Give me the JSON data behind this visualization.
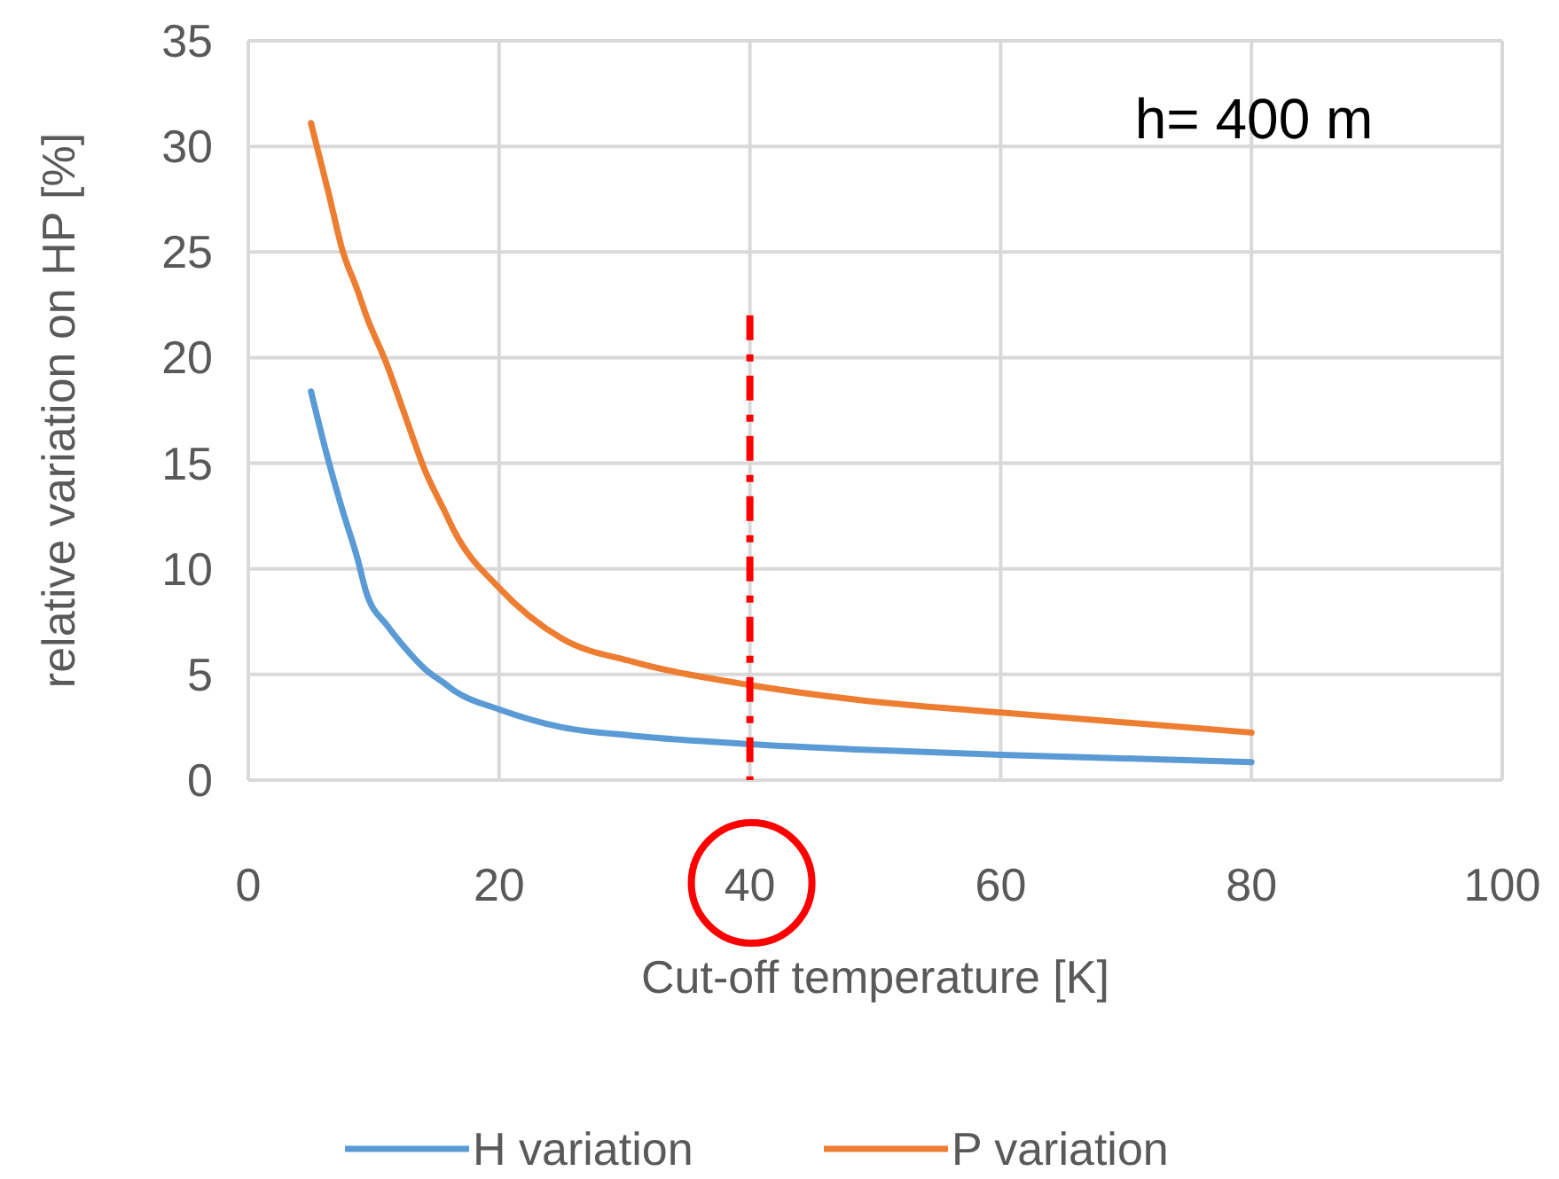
{
  "chart_data": {
    "type": "line",
    "x": [
      5,
      6.4,
      7.5,
      8.7,
      9.4,
      11.1,
      12.3,
      14.2,
      15.6,
      16.5,
      20,
      25,
      30.7,
      40,
      48.6,
      60,
      80
    ],
    "series": [
      {
        "name": "H variation",
        "color": "#5b9bd5",
        "values": [
          18.4,
          15.1,
          12.8,
          10.5,
          8.9,
          7.3,
          6.4,
          5.2,
          4.6,
          4.2,
          3.35,
          2.5,
          2.1,
          1.7,
          1.45,
          1.2,
          0.85
        ]
      },
      {
        "name": "P variation",
        "color": "#ed7d31",
        "values": [
          31.1,
          27.8,
          25.1,
          23.2,
          22.0,
          19.6,
          17.6,
          14.5,
          12.8,
          11.7,
          9.1,
          6.7,
          5.6,
          4.5,
          3.8,
          3.2,
          2.25
        ]
      }
    ],
    "xlabel": "Cut-off temperature [K]",
    "ylabel": "relative variation on HP  [%]",
    "xlim": [
      0,
      100
    ],
    "xticks": [
      0,
      20,
      40,
      60,
      80,
      100
    ],
    "ylim": [
      0,
      35
    ],
    "yticks": [
      0,
      5,
      10,
      15,
      20,
      25,
      30,
      35
    ],
    "grid": true,
    "legend": "bottom",
    "marker": "none",
    "line_style": "solid",
    "annotations": [
      "h= 400 m"
    ],
    "ref_lines": [
      {
        "axis": "x",
        "value": 40,
        "color": "#ff0000",
        "line_style": "dashdot"
      }
    ]
  }
}
